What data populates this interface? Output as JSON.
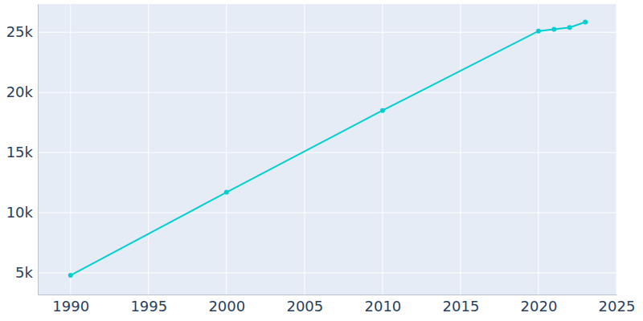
{
  "chart_data": {
    "type": "line",
    "x": [
      1990,
      2000,
      2010,
      2020,
      2021,
      2022,
      2023
    ],
    "values": [
      4800,
      11700,
      18500,
      25100,
      25250,
      25400,
      25850
    ],
    "color": "#00ced1",
    "marker": "circle",
    "xlim": [
      1987.9,
      2025
    ],
    "xticks": [
      1990,
      1995,
      2000,
      2005,
      2010,
      2015,
      2020,
      2025
    ],
    "ylim": [
      3200,
      27350
    ],
    "yticks": [
      {
        "value": 5000,
        "label": "5k"
      },
      {
        "value": 10000,
        "label": "10k"
      },
      {
        "value": 15000,
        "label": "15k"
      },
      {
        "value": 20000,
        "label": "20k"
      },
      {
        "value": 25000,
        "label": "25k"
      }
    ],
    "grid": true
  }
}
